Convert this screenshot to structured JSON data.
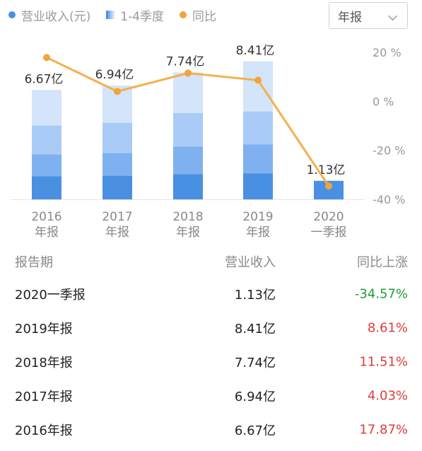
{
  "legend": {
    "revenue": "营业收入(元)",
    "quarters": "1-4季度",
    "yoy": "同比"
  },
  "period_select": {
    "value": "年报"
  },
  "colors": {
    "q1": "#4a90e2",
    "q2": "#7fb1f0",
    "q3": "#a9cbf6",
    "q4": "#d3e4fb",
    "yoy_line": "#f5b04a",
    "yoy_point": "#f2a33a",
    "positive": "#e23b3b",
    "negative": "#1f9d3a"
  },
  "chart_data": {
    "type": "bar",
    "categories": [
      "2016 年报",
      "2017 年报",
      "2018 年报",
      "2019 年报",
      "2020 一季报"
    ],
    "category_lines": [
      [
        "2016",
        "年报"
      ],
      [
        "2017",
        "年报"
      ],
      [
        "2018",
        "年报"
      ],
      [
        "2019",
        "年报"
      ],
      [
        "2020",
        "一季报"
      ]
    ],
    "revenue_labels": [
      "6.67亿",
      "6.94亿",
      "7.74亿",
      "8.41亿",
      "1.13亿"
    ],
    "series": [
      {
        "name": "1-4季度",
        "stacks": [
          [
            1.4,
            1.34,
            1.77,
            2.16
          ],
          [
            1.44,
            1.38,
            1.85,
            2.27
          ],
          [
            1.54,
            1.67,
            2.06,
            2.47
          ],
          [
            1.59,
            1.75,
            2.02,
            3.05
          ],
          [
            1.13
          ]
        ]
      },
      {
        "name": "同比",
        "axis": "right",
        "values": [
          17.87,
          4.03,
          11.51,
          8.61,
          -34.57
        ]
      }
    ],
    "revenue_totals": [
      6.67,
      6.94,
      7.74,
      8.41,
      1.13
    ],
    "right_axis": {
      "ticks": [
        "20 %",
        "0 %",
        "-20 %",
        "-40 %"
      ],
      "range": [
        -40,
        20
      ]
    }
  },
  "table": {
    "headers": [
      "报告期",
      "营业收入",
      "同比上涨"
    ],
    "rows": [
      {
        "period": "2020一季报",
        "revenue": "1.13亿",
        "yoy": "-34.57%",
        "dir": "neg"
      },
      {
        "period": "2019年报",
        "revenue": "8.41亿",
        "yoy": "8.61%",
        "dir": "pos"
      },
      {
        "period": "2018年报",
        "revenue": "7.74亿",
        "yoy": "11.51%",
        "dir": "pos"
      },
      {
        "period": "2017年报",
        "revenue": "6.94亿",
        "yoy": "4.03%",
        "dir": "pos"
      },
      {
        "period": "2016年报",
        "revenue": "6.67亿",
        "yoy": "17.87%",
        "dir": "pos"
      }
    ]
  }
}
